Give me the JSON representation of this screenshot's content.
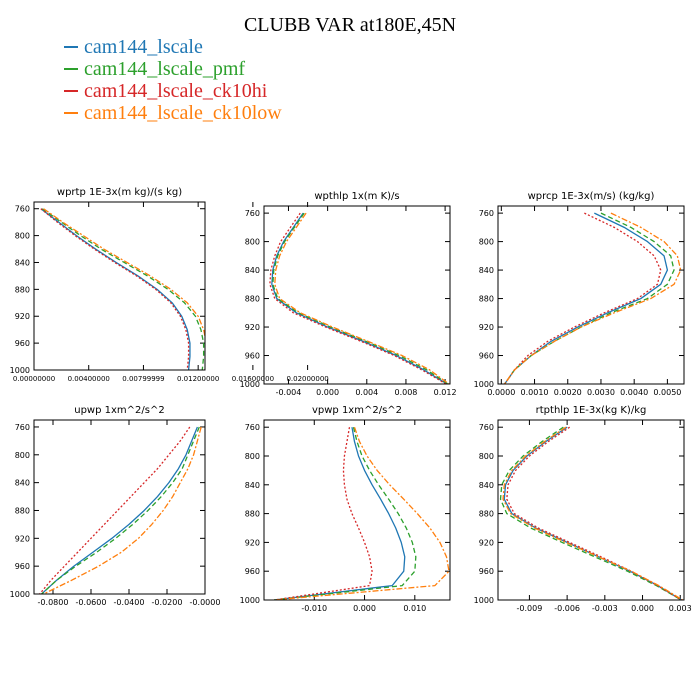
{
  "figure": {
    "title": "CLUBB VAR at180E,45N"
  },
  "legend": [
    {
      "label": "cam144_lscale",
      "color": "#1f77b4"
    },
    {
      "label": "cam144_lscale_pmf",
      "color": "#2ca02c"
    },
    {
      "label": "cam144_lscale_ck10hi",
      "color": "#d62728"
    },
    {
      "label": "cam144_lscale_ck10low",
      "color": "#ff7f0e"
    }
  ],
  "chart_data": [
    {
      "type": "line",
      "title": "wprtp  1E-3x(m kg)/(s kg)",
      "xlim": [
        0.0,
        0.0125
      ],
      "ylim": [
        1000,
        750
      ],
      "xticks": [
        "0.00000000",
        "0.00400000",
        "0.00799999",
        "0.01200000",
        "0.01600000",
        "0.02000000"
      ],
      "yticks": [
        "760",
        "800",
        "840",
        "880",
        "920",
        "960",
        "1000"
      ],
      "y": [
        760,
        780,
        800,
        820,
        840,
        860,
        880,
        900,
        920,
        940,
        960,
        980,
        1000
      ],
      "series": [
        {
          "name": "cam144_lscale",
          "dash": "solid",
          "x": [
            0.0005,
            0.0018,
            0.0031,
            0.0045,
            0.006,
            0.0076,
            0.009,
            0.0101,
            0.0108,
            0.0112,
            0.0114,
            0.0114,
            0.0113
          ]
        },
        {
          "name": "cam144_lscale_pmf",
          "dash": "dashed",
          "x": [
            0.0006,
            0.002,
            0.0034,
            0.0049,
            0.0066,
            0.0083,
            0.0098,
            0.011,
            0.0118,
            0.0122,
            0.0124,
            0.0124,
            0.0123
          ]
        },
        {
          "name": "cam144_lscale_ck10hi",
          "dash": "dotted",
          "x": [
            0.0005,
            0.0017,
            0.003,
            0.0044,
            0.0059,
            0.0075,
            0.0089,
            0.01,
            0.0107,
            0.0111,
            0.0113,
            0.0113,
            0.0112
          ]
        },
        {
          "name": "cam144_lscale_ck10low",
          "dash": "dashdot",
          "x": [
            0.0007,
            0.0021,
            0.0036,
            0.0051,
            0.0068,
            0.0085,
            0.01,
            0.0112,
            0.012,
            0.0124,
            0.0126,
            0.0126,
            0.0125
          ]
        }
      ]
    },
    {
      "type": "line",
      "title": "wpthlp  1x(m K)/s",
      "xlim": [
        -0.0065,
        0.0125
      ],
      "ylim": [
        1000,
        750
      ],
      "xticks": [
        "-0.004",
        "0.000",
        "0.004",
        "0.008",
        "0.012"
      ],
      "yticks": [
        "760",
        "800",
        "840",
        "880",
        "920",
        "960",
        "1000"
      ],
      "y": [
        760,
        780,
        800,
        820,
        840,
        860,
        880,
        900,
        920,
        940,
        960,
        980,
        1000
      ],
      "series": [
        {
          "name": "cam144_lscale",
          "dash": "solid",
          "x": [
            -0.0025,
            -0.0035,
            -0.0045,
            -0.0052,
            -0.0056,
            -0.0057,
            -0.0052,
            -0.0032,
            0.0,
            0.0036,
            0.007,
            0.0098,
            0.0122
          ]
        },
        {
          "name": "cam144_lscale_pmf",
          "dash": "dashed",
          "x": [
            -0.0024,
            -0.0034,
            -0.0044,
            -0.0051,
            -0.0055,
            -0.0056,
            -0.0051,
            -0.003,
            0.0003,
            0.0039,
            0.0073,
            0.0101,
            0.0123
          ]
        },
        {
          "name": "cam144_lscale_ck10hi",
          "dash": "dotted",
          "x": [
            -0.0028,
            -0.0038,
            -0.0048,
            -0.0054,
            -0.0058,
            -0.0059,
            -0.0054,
            -0.0035,
            -0.0002,
            0.0034,
            0.0068,
            0.0096,
            0.0121
          ]
        },
        {
          "name": "cam144_lscale_ck10low",
          "dash": "dashdot",
          "x": [
            -0.0022,
            -0.0032,
            -0.0042,
            -0.0049,
            -0.0053,
            -0.0054,
            -0.0049,
            -0.0028,
            0.0005,
            0.0041,
            0.0076,
            0.0104,
            0.0124
          ]
        }
      ]
    },
    {
      "type": "line",
      "title": "wprcp  1E-3x(m/s) (kg/kg)",
      "xlim": [
        -0.0001,
        0.0055
      ],
      "ylim": [
        1000,
        750
      ],
      "xticks": [
        "0.0000",
        "0.0010",
        "0.0020",
        "0.0030",
        "0.0040",
        "0.0050"
      ],
      "yticks": [
        "760",
        "800",
        "840",
        "880",
        "920",
        "960",
        "1000"
      ],
      "y": [
        760,
        780,
        800,
        820,
        840,
        860,
        880,
        900,
        920,
        940,
        960,
        980,
        1000
      ],
      "series": [
        {
          "name": "cam144_lscale",
          "dash": "solid",
          "x": [
            0.0028,
            0.0037,
            0.0044,
            0.0049,
            0.005,
            0.0048,
            0.0042,
            0.0032,
            0.0023,
            0.0015,
            0.0009,
            0.0004,
            0.0001
          ]
        },
        {
          "name": "cam144_lscale_pmf",
          "dash": "dashed",
          "x": [
            0.003,
            0.0039,
            0.0046,
            0.0051,
            0.0052,
            0.005,
            0.0044,
            0.0033,
            0.0024,
            0.0016,
            0.0009,
            0.0004,
            0.0001
          ]
        },
        {
          "name": "cam144_lscale_ck10hi",
          "dash": "dotted",
          "x": [
            0.0025,
            0.0034,
            0.0041,
            0.0046,
            0.0048,
            0.0047,
            0.0041,
            0.0031,
            0.0022,
            0.0014,
            0.0008,
            0.0004,
            0.0001
          ]
        },
        {
          "name": "cam144_lscale_ck10low",
          "dash": "dashdot",
          "x": [
            0.0033,
            0.0042,
            0.0049,
            0.0053,
            0.0054,
            0.0052,
            0.0045,
            0.0034,
            0.0024,
            0.0016,
            0.0009,
            0.0004,
            0.0001
          ]
        }
      ]
    },
    {
      "type": "line",
      "title": "upwp  1xm^2/s^2",
      "xlim": [
        -0.09,
        0.0
      ],
      "ylim": [
        1000,
        750
      ],
      "xticks": [
        "-0.0800",
        "-0.0600",
        "-0.0400",
        "-0.0200",
        "-0.0000"
      ],
      "yticks": [
        "760",
        "800",
        "840",
        "880",
        "920",
        "960",
        "1000"
      ],
      "y": [
        760,
        780,
        800,
        820,
        840,
        860,
        880,
        900,
        920,
        940,
        960,
        980,
        1000
      ],
      "series": [
        {
          "name": "cam144_lscale",
          "dash": "solid",
          "x": [
            -0.004,
            -0.007,
            -0.01,
            -0.014,
            -0.019,
            -0.025,
            -0.032,
            -0.04,
            -0.049,
            -0.059,
            -0.069,
            -0.078,
            -0.086
          ]
        },
        {
          "name": "cam144_lscale_pmf",
          "dash": "dashed",
          "x": [
            -0.003,
            -0.006,
            -0.009,
            -0.012,
            -0.017,
            -0.023,
            -0.03,
            -0.038,
            -0.047,
            -0.057,
            -0.068,
            -0.078,
            -0.086
          ]
        },
        {
          "name": "cam144_lscale_ck10hi",
          "dash": "dotted",
          "x": [
            -0.008,
            -0.013,
            -0.019,
            -0.025,
            -0.032,
            -0.039,
            -0.046,
            -0.053,
            -0.06,
            -0.067,
            -0.074,
            -0.081,
            -0.087
          ]
        },
        {
          "name": "cam144_lscale_ck10low",
          "dash": "dashdot",
          "x": [
            -0.002,
            -0.004,
            -0.006,
            -0.009,
            -0.013,
            -0.017,
            -0.022,
            -0.028,
            -0.035,
            -0.044,
            -0.056,
            -0.07,
            -0.085
          ]
        }
      ]
    },
    {
      "type": "line",
      "title": "vpwp  1xm^2/s^2",
      "xlim": [
        -0.02,
        0.017
      ],
      "ylim": [
        1000,
        750
      ],
      "xticks": [
        "-0.010",
        "0.000",
        "0.010"
      ],
      "yticks": [
        "760",
        "800",
        "840",
        "880",
        "920",
        "960",
        "1000"
      ],
      "y": [
        760,
        780,
        800,
        820,
        840,
        860,
        880,
        900,
        920,
        940,
        960,
        980,
        1000
      ],
      "series": [
        {
          "name": "cam144_lscale",
          "dash": "solid",
          "x": [
            -0.0025,
            -0.002,
            -0.0012,
            0.0,
            0.0015,
            0.0032,
            0.0048,
            0.0062,
            0.0073,
            0.008,
            0.0078,
            0.0055,
            -0.018
          ]
        },
        {
          "name": "cam144_lscale_pmf",
          "dash": "dashed",
          "x": [
            -0.0022,
            -0.0015,
            -0.0005,
            0.001,
            0.0028,
            0.0048,
            0.0067,
            0.0083,
            0.0095,
            0.0102,
            0.01,
            0.0075,
            -0.018
          ]
        },
        {
          "name": "cam144_lscale_ck10hi",
          "dash": "dotted",
          "x": [
            -0.003,
            -0.0035,
            -0.004,
            -0.0042,
            -0.004,
            -0.0035,
            -0.0025,
            -0.0012,
            0.0,
            0.001,
            0.0015,
            0.001,
            -0.018
          ]
        },
        {
          "name": "cam144_lscale_ck10low",
          "dash": "dashdot",
          "x": [
            -0.002,
            -0.001,
            0.0005,
            0.0025,
            0.005,
            0.0078,
            0.0105,
            0.013,
            0.015,
            0.0163,
            0.0168,
            0.014,
            -0.018
          ]
        }
      ]
    },
    {
      "type": "line",
      "title": "rtpthlp  1E-3x(kg K)/kg",
      "xlim": [
        -0.0115,
        0.0033
      ],
      "ylim": [
        1000,
        750
      ],
      "xticks": [
        "-0.009",
        "-0.006",
        "-0.003",
        "0.000",
        "0.003"
      ],
      "yticks": [
        "760",
        "800",
        "840",
        "880",
        "920",
        "960",
        "1000"
      ],
      "y": [
        760,
        780,
        800,
        820,
        840,
        860,
        880,
        900,
        920,
        940,
        960,
        980,
        1000
      ],
      "series": [
        {
          "name": "cam144_lscale",
          "dash": "solid",
          "x": [
            -0.006,
            -0.0077,
            -0.0092,
            -0.0103,
            -0.0109,
            -0.011,
            -0.0104,
            -0.0085,
            -0.006,
            -0.0035,
            -0.001,
            0.0012,
            0.0031
          ]
        },
        {
          "name": "cam144_lscale_pmf",
          "dash": "dashed",
          "x": [
            -0.0063,
            -0.008,
            -0.0095,
            -0.0106,
            -0.0112,
            -0.0113,
            -0.0108,
            -0.0089,
            -0.0064,
            -0.0038,
            -0.0012,
            0.0011,
            0.0031
          ]
        },
        {
          "name": "cam144_lscale_ck10hi",
          "dash": "dotted",
          "x": [
            -0.0058,
            -0.0075,
            -0.009,
            -0.0101,
            -0.0107,
            -0.0108,
            -0.0102,
            -0.0083,
            -0.0058,
            -0.0033,
            -0.0009,
            0.0012,
            0.0031
          ]
        },
        {
          "name": "cam144_lscale_ck10low",
          "dash": "dashdot",
          "x": [
            -0.0061,
            -0.0078,
            -0.0093,
            -0.0104,
            -0.011,
            -0.0111,
            -0.0105,
            -0.0086,
            -0.0061,
            -0.0035,
            -0.0009,
            0.0013,
            0.0032
          ]
        }
      ]
    }
  ]
}
